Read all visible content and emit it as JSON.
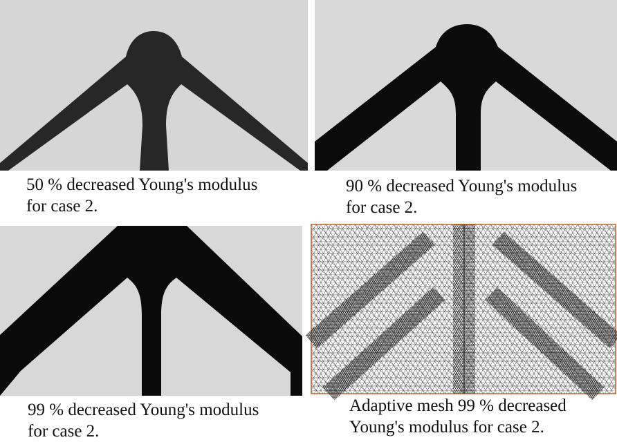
{
  "panels": [
    {
      "caption": [
        "50 % decreased Young's modulus",
        "for case 2."
      ]
    },
    {
      "caption": [
        "90 % decreased Young's modulus",
        "for case 2."
      ]
    },
    {
      "caption": [
        "99 % decreased Young's modulus",
        "for case 2."
      ]
    },
    {
      "caption": [
        "Adaptive mesh 99 % decreased",
        "Young's modulus for case 2."
      ]
    }
  ]
}
